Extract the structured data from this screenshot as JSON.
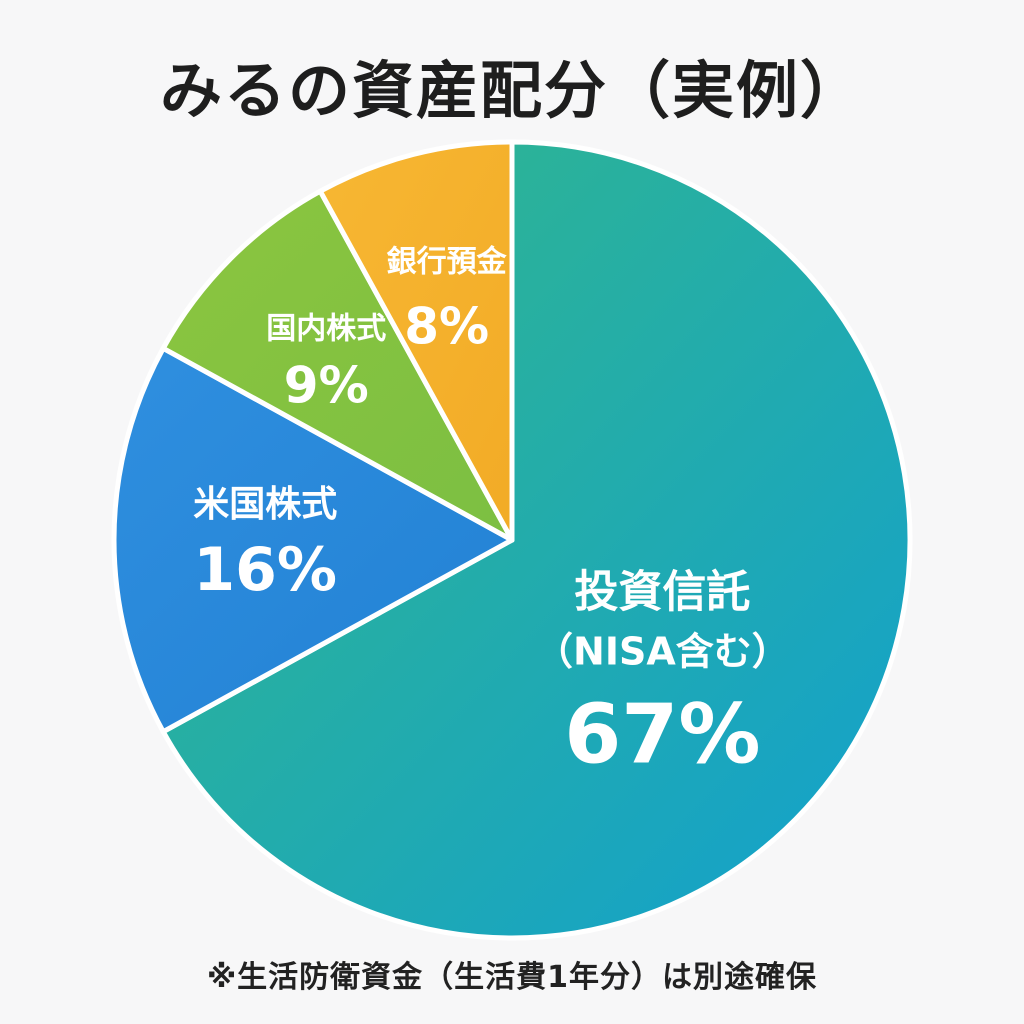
{
  "title": "みるの資産配分（実例）",
  "footnote": "※生活防衛資金（生活費1年分）は別途確保",
  "chart_data": {
    "type": "pie",
    "title": "みるの資産配分（実例）",
    "start_angle_deg": 0,
    "direction": "clockwise",
    "slices": [
      {
        "label": "投資信託",
        "sublabel": "（NISA含む）",
        "value": 67,
        "value_label": "67%",
        "color_start": "#33b888",
        "color_end": "#12a0cf"
      },
      {
        "label": "米国株式",
        "value": 16,
        "value_label": "16%",
        "color_start": "#2f8fdf",
        "color_end": "#2281d4"
      },
      {
        "label": "国内株式",
        "value": 9,
        "value_label": "9%",
        "color_start": "#8bc53f",
        "color_end": "#7cbf42"
      },
      {
        "label": "銀行預金",
        "value": 8,
        "value_label": "8%",
        "color_start": "#f7b733",
        "color_end": "#f2ab26"
      }
    ]
  }
}
